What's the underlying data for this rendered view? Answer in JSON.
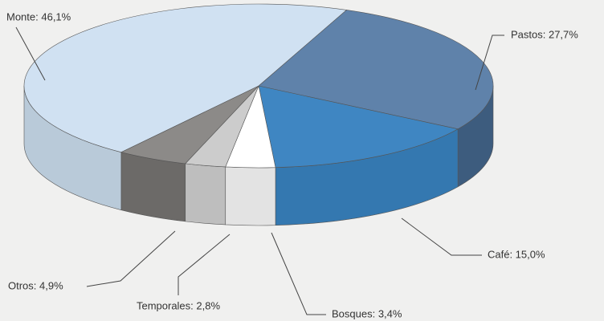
{
  "chart_data": {
    "type": "pie3d",
    "labels": [
      "Pastos: 27,7%",
      "Café: 15,0%",
      "Bosques: 3,4%",
      "Temporales: 2,8%",
      "Otros: 4,9%",
      "Monte: 46,1%"
    ],
    "values": [
      27.7,
      15.0,
      3.4,
      2.8,
      4.9,
      46.1
    ],
    "colors": [
      "#5f82aa",
      "#3f86c2",
      "#ffffff",
      "#cccccc",
      "#8c8a88",
      "#d0e1f2"
    ],
    "side_colors": [
      "#3d5c7e",
      "#3478b0",
      "#e3e3e3",
      "#bebebe",
      "#6c6a68",
      "#b9cad9"
    ]
  }
}
